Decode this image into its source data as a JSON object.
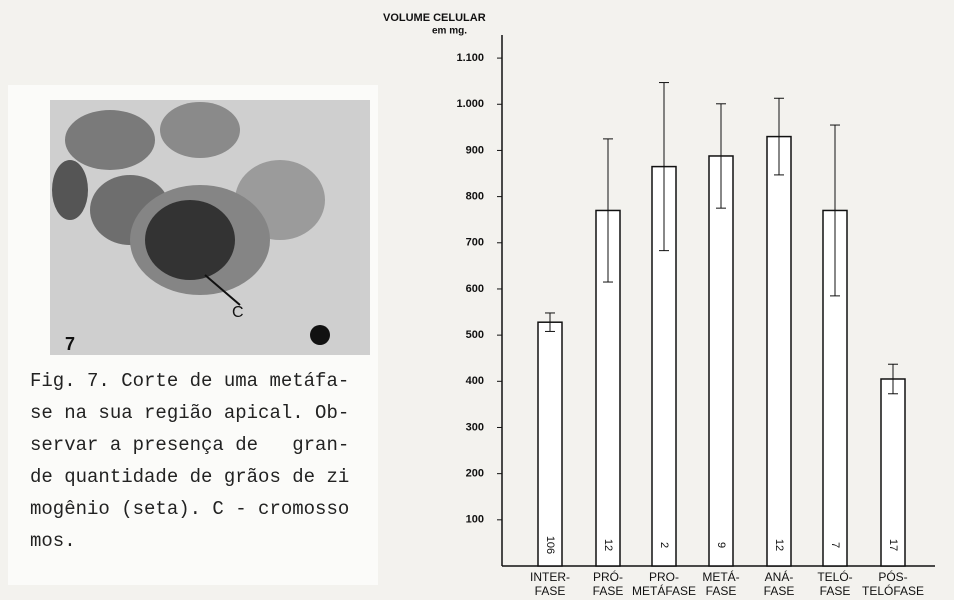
{
  "chart_data": {
    "type": "bar",
    "y_label": "VOLUME CELULAR",
    "y_unit": "em mg.",
    "categories": [
      "INTER-\nFASE",
      "PRÓ-\nFASE",
      "PRO-\nMETÁFASE",
      "METÁ-\nFASE",
      "ANÁ-\nFASE",
      "TELÓ-\nFASE",
      "PÓS-\nTELÓFASE"
    ],
    "values": [
      528,
      770,
      865,
      888,
      930,
      770,
      405
    ],
    "errors": [
      20,
      155,
      182,
      113,
      83,
      185,
      32
    ],
    "n": [
      106,
      12,
      2,
      9,
      12,
      7,
      17
    ],
    "color": "#ffffff",
    "ylim": [
      0,
      1150
    ],
    "yticks": [
      100,
      200,
      300,
      400,
      500,
      600,
      700,
      800,
      900,
      {
        "value": 1000,
        "label": "1.000"
      },
      {
        "value": 1100,
        "label": "1.100"
      }
    ]
  },
  "figure": {
    "panel_label": "7",
    "pointer_label": "C",
    "caption_lines": [
      "Fig. 7. Corte de uma metáfa-",
      "se na sua região apical. Ob-",
      "servar a presença de   gran-",
      "de quantidade de grãos de zi",
      "mogênio (seta). C - cromosso",
      "mos."
    ]
  }
}
